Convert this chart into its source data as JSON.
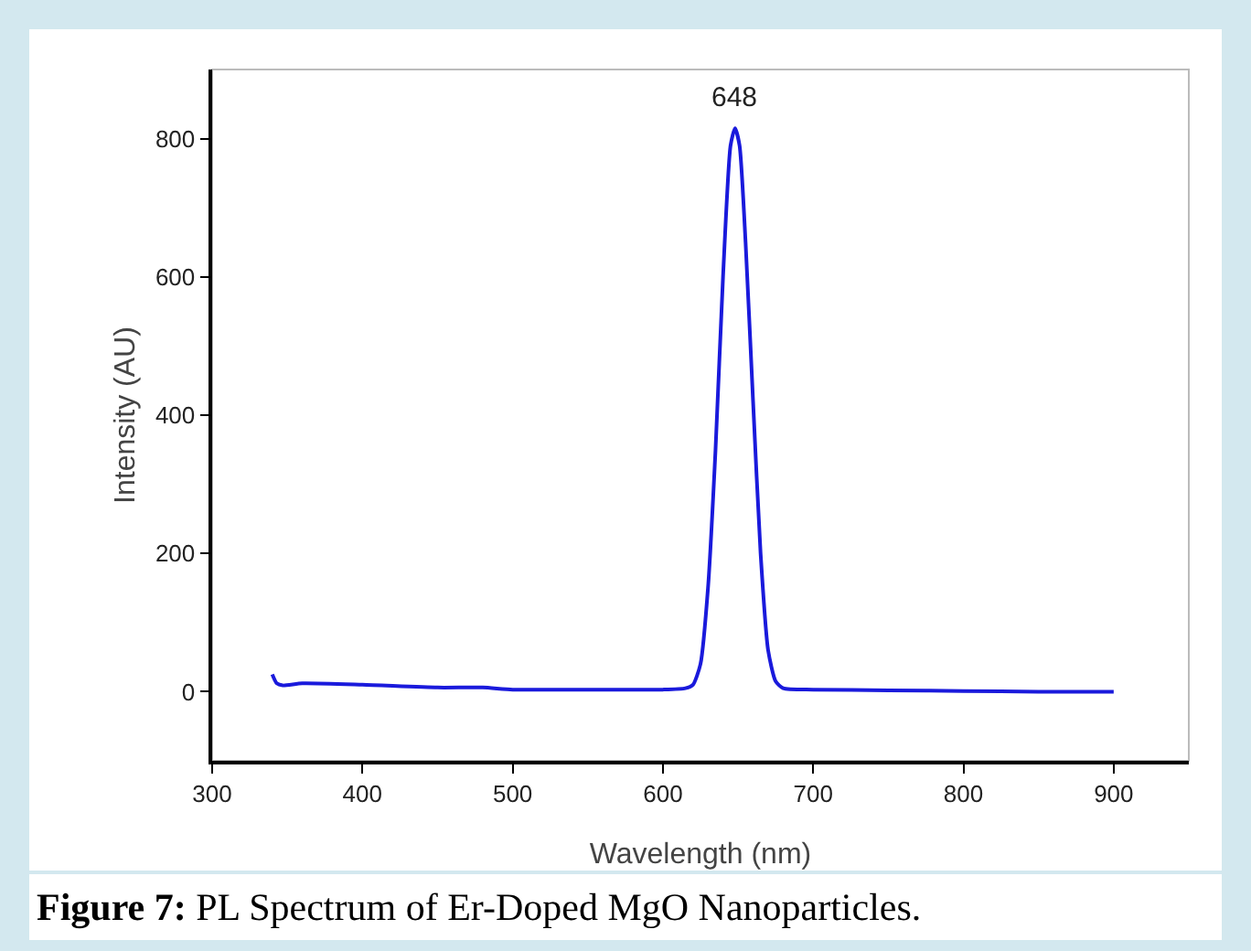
{
  "chart_data": {
    "type": "line",
    "xlabel": "Wavelength (nm)",
    "ylabel": "Intensity (AU)",
    "x": [
      340,
      343,
      347,
      360,
      400,
      450,
      480,
      500,
      550,
      600,
      615,
      620,
      625,
      630,
      635,
      640,
      645,
      648,
      651,
      655,
      660,
      665,
      670,
      675,
      680,
      700,
      750,
      800,
      850,
      900
    ],
    "series": [
      {
        "color": "#1a1adc",
        "values": [
          25,
          12,
          9,
          12,
          10,
          6,
          6,
          3,
          3,
          3,
          5,
          10,
          40,
          150,
          350,
          600,
          790,
          815,
          790,
          650,
          420,
          200,
          60,
          15,
          5,
          3,
          2,
          1,
          0,
          0
        ]
      }
    ],
    "xlim": [
      300,
      950
    ],
    "xticks": [
      300,
      400,
      500,
      600,
      700,
      800,
      900
    ],
    "ylim": [
      -100,
      900
    ],
    "yticks": [
      0,
      200,
      400,
      600,
      800
    ],
    "annotations": [
      {
        "text": "648",
        "x": 648,
        "y": 815
      },
      "Figure 7: PL Spectrum of Er-Doped MgO Nanoparticles."
    ],
    "grid": false,
    "marker": "none",
    "line_style": "solid"
  }
}
